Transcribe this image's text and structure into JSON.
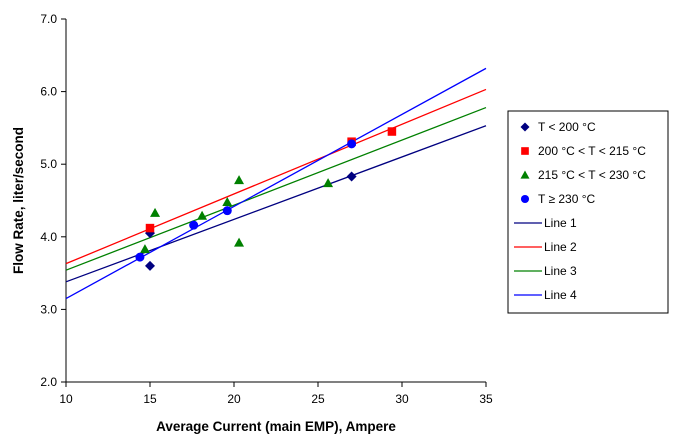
{
  "chart_data": {
    "type": "scatter",
    "title": "",
    "xlabel": "Average Current (main EMP), Ampere",
    "ylabel": "Flow Rate, liter/second",
    "xlim": [
      10,
      35
    ],
    "ylim": [
      2.0,
      7.0
    ],
    "xticks": [
      "10",
      "15",
      "20",
      "25",
      "30",
      "35"
    ],
    "yticks": [
      "2.0",
      "3.0",
      "4.0",
      "5.0",
      "6.0",
      "7.0"
    ],
    "grid": false,
    "legend_position": "right",
    "series": [
      {
        "name": "T < 200 °C",
        "kind": "points",
        "marker": "diamond",
        "color": "#000080",
        "points": [
          [
            15.0,
            4.05
          ],
          [
            15.0,
            3.6
          ],
          [
            27.0,
            4.83
          ]
        ]
      },
      {
        "name": "200 °C < T < 215 °C",
        "kind": "points",
        "marker": "square",
        "color": "#ff0000",
        "points": [
          [
            15.0,
            4.12
          ],
          [
            27.0,
            5.31
          ],
          [
            29.4,
            5.45
          ]
        ]
      },
      {
        "name": "215 °C < T < 230 °C",
        "kind": "points",
        "marker": "triangle",
        "color": "#008000",
        "points": [
          [
            14.7,
            3.83
          ],
          [
            15.3,
            4.33
          ],
          [
            18.1,
            4.29
          ],
          [
            19.6,
            4.48
          ],
          [
            20.3,
            4.78
          ],
          [
            20.3,
            3.92
          ],
          [
            25.6,
            4.74
          ]
        ]
      },
      {
        "name": "T ≥ 230 °C",
        "kind": "points",
        "marker": "circle",
        "color": "#0000ff",
        "points": [
          [
            14.4,
            3.72
          ],
          [
            17.6,
            4.16
          ],
          [
            19.6,
            4.36
          ],
          [
            27.0,
            5.28
          ]
        ]
      },
      {
        "name": "Line 1",
        "kind": "line",
        "color": "#000080",
        "points": [
          [
            10,
            3.38
          ],
          [
            35,
            5.53
          ]
        ]
      },
      {
        "name": "Line 2",
        "kind": "line",
        "color": "#ff0000",
        "points": [
          [
            10,
            3.63
          ],
          [
            35,
            6.03
          ]
        ]
      },
      {
        "name": "Line 3",
        "kind": "line",
        "color": "#008000",
        "points": [
          [
            10,
            3.54
          ],
          [
            35,
            5.78
          ]
        ]
      },
      {
        "name": "Line 4",
        "kind": "line",
        "color": "#0000ff",
        "points": [
          [
            10,
            3.15
          ],
          [
            35,
            6.32
          ]
        ]
      }
    ]
  }
}
